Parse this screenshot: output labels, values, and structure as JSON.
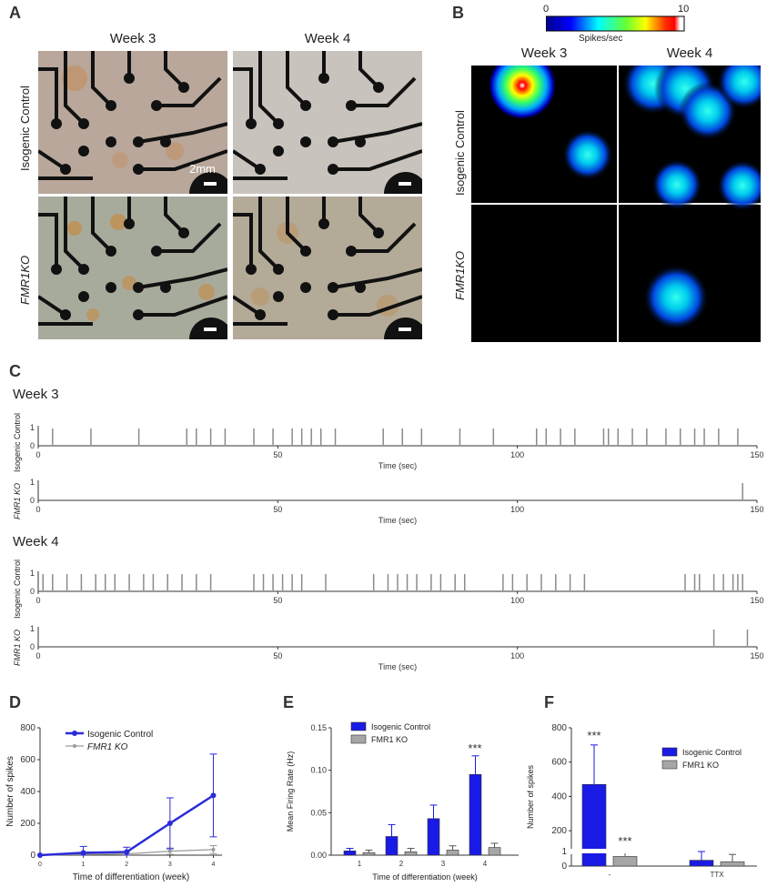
{
  "panels": {
    "a": "A",
    "b": "B",
    "c": "C",
    "d": "D",
    "e": "E",
    "f": "F"
  },
  "panel_a": {
    "col_labels": [
      "Week 3",
      "Week 4"
    ],
    "row_labels": [
      "Isogenic Control",
      "FMR1KO"
    ],
    "scale_bar_label": "2mm"
  },
  "panel_b": {
    "colorbar_min": "0",
    "colorbar_max": "10",
    "colorbar_unit": "Spikes/sec",
    "col_labels": [
      "Week 3",
      "Week 4"
    ],
    "row_labels": [
      "Isogenic Control",
      "FMR1KO"
    ]
  },
  "panel_c": {
    "sections": [
      "Week 3",
      "Week 4"
    ],
    "row_labels": [
      "Isogenic Control",
      "FMR1 KO"
    ],
    "x_label": "Time (sec)"
  },
  "chart_data": [
    {
      "id": "C-week3-control",
      "type": "scatter",
      "title": "",
      "xlabel": "Time (sec)",
      "ylabel": "Isogenic Control",
      "xlim": [
        0,
        150
      ],
      "ylim": [
        0,
        1
      ],
      "xticks": [
        0,
        50,
        100,
        150
      ],
      "yticks": [
        0,
        1
      ],
      "spike_times": [
        3,
        11,
        21,
        31,
        33,
        36,
        39,
        45,
        49,
        53,
        55,
        57,
        59,
        62,
        72,
        76,
        80,
        88,
        95,
        104,
        106,
        109,
        112,
        118,
        119,
        121,
        124,
        127,
        131,
        134,
        137,
        139,
        142,
        146
      ]
    },
    {
      "id": "C-week3-ko",
      "type": "scatter",
      "xlabel": "Time (sec)",
      "ylabel": "FMR1 KO",
      "xlim": [
        0,
        150
      ],
      "ylim": [
        0,
        1
      ],
      "xticks": [
        0,
        50,
        100,
        150
      ],
      "yticks": [
        0,
        1
      ],
      "spike_times": [
        147
      ]
    },
    {
      "id": "C-week4-control",
      "type": "scatter",
      "xlabel": "",
      "ylabel": "Isogenic Control",
      "xlim": [
        0,
        150
      ],
      "ylim": [
        0,
        1
      ],
      "xticks": [
        0,
        50,
        100,
        150
      ],
      "yticks": [
        0,
        1
      ],
      "spike_times": [
        1,
        3,
        6,
        9,
        12,
        14,
        16,
        19,
        22,
        24,
        27,
        30,
        33,
        36,
        45,
        47,
        49,
        51,
        53,
        55,
        60,
        70,
        73,
        75,
        77,
        79,
        82,
        84,
        87,
        89,
        97,
        99,
        102,
        105,
        108,
        111,
        114,
        135,
        137,
        138,
        141,
        143,
        145,
        146,
        147
      ]
    },
    {
      "id": "C-week4-ko",
      "type": "scatter",
      "xlabel": "Time (sec)",
      "ylabel": "FMR1 KO",
      "xlim": [
        0,
        150
      ],
      "ylim": [
        0,
        1
      ],
      "xticks": [
        0,
        50,
        100,
        150
      ],
      "yticks": [
        0,
        1
      ],
      "spike_times": [
        141,
        148
      ]
    },
    {
      "id": "D",
      "type": "line",
      "xlabel": "Time of differentiation (week)",
      "ylabel": "Number of spikes",
      "xlim": [
        0,
        4.2
      ],
      "ylim": [
        0,
        800
      ],
      "xticks": [
        0,
        1,
        2,
        3,
        4
      ],
      "yticks": [
        0,
        200,
        400,
        600,
        800
      ],
      "legend_position": "top-center",
      "series": [
        {
          "name": "Isogenic Control",
          "color": "#2b2bd8",
          "x": [
            0,
            1,
            2,
            3,
            4
          ],
          "values": [
            0,
            15,
            20,
            200,
            375
          ],
          "err": [
            0,
            40,
            30,
            160,
            260
          ]
        },
        {
          "name": "FMR1 KO",
          "color": "#9a9a9a",
          "x": [
            0,
            1,
            2,
            3,
            4
          ],
          "values": [
            0,
            5,
            8,
            25,
            35
          ],
          "err": [
            0,
            10,
            15,
            20,
            25
          ]
        }
      ]
    },
    {
      "id": "E",
      "type": "bar",
      "xlabel": "Time of differentiation (week)",
      "ylabel": "Mean Firing Rate (Hz)",
      "ylim": [
        0,
        0.15
      ],
      "yticks": [
        "0.00",
        "0.05",
        "0.10",
        "0.15"
      ],
      "categories": [
        "1",
        "2",
        "3",
        "4"
      ],
      "legend_position": "top-left",
      "annotations": [
        {
          "category": "4",
          "text": "***"
        }
      ],
      "series": [
        {
          "name": "Isogenic Control",
          "color": "#1a1ae6",
          "values": [
            0.005,
            0.022,
            0.043,
            0.095
          ],
          "err": [
            0.003,
            0.014,
            0.016,
            0.022
          ]
        },
        {
          "name": "FMR1 KO",
          "color": "#a6a6a6",
          "values": [
            0.003,
            0.004,
            0.006,
            0.009
          ],
          "err": [
            0.003,
            0.004,
            0.005,
            0.005
          ]
        }
      ]
    },
    {
      "id": "F",
      "type": "bar",
      "xlabel": "",
      "ylabel": "Number of spikes",
      "ylim": [
        0,
        800
      ],
      "yticks": [
        "0",
        "1",
        "200",
        "400",
        "600",
        "800"
      ],
      "categories": [
        "-",
        "TTX"
      ],
      "legend_position": "top-right",
      "annotations": [
        {
          "category": "-",
          "series": "Isogenic Control",
          "text": "***"
        },
        {
          "category": "-",
          "series": "FMR1 KO",
          "text": "***"
        }
      ],
      "series": [
        {
          "name": "Isogenic Control",
          "color": "#1a1ae6",
          "values": [
            470,
            0.4
          ],
          "err": [
            230,
            0.6
          ]
        },
        {
          "name": "FMR1 KO",
          "color": "#a6a6a6",
          "values": [
            50,
            0.3
          ],
          "err": [
            35,
            0.5
          ]
        }
      ]
    }
  ]
}
